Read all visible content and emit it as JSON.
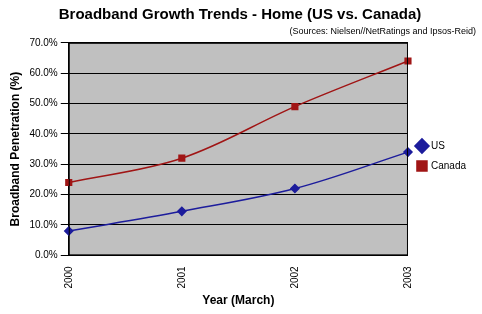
{
  "chart_data": {
    "type": "line",
    "title": "Broadband Growth Trends - Home (US vs. Canada)",
    "subtitle": "(Sources: Nielsen//NetRatings and Ipsos-Reid)",
    "x_label": "Year (March)",
    "y_label": "Broadband Penetration (%)",
    "categories": [
      "2000",
      "2001",
      "2002",
      "2003"
    ],
    "series": [
      {
        "name": "US",
        "color": "#1c1c9c",
        "marker": "diamond",
        "values": [
          8,
          14.5,
          22,
          34
        ]
      },
      {
        "name": "Canada",
        "color": "#a01515",
        "marker": "square",
        "values": [
          24,
          32,
          49,
          64
        ]
      }
    ],
    "ylim": [
      0,
      70
    ],
    "yticks": [
      {
        "value": 0,
        "label": "0.0%"
      },
      {
        "value": 10,
        "label": "10.0%"
      },
      {
        "value": 20,
        "label": "20.0%"
      },
      {
        "value": 30,
        "label": "30.0%"
      },
      {
        "value": 40,
        "label": "40.0%"
      },
      {
        "value": 50,
        "label": "50.0%"
      },
      {
        "value": 60,
        "label": "60.0%"
      },
      {
        "value": 70,
        "label": "70.0%"
      }
    ],
    "grid": true,
    "legend": "right"
  }
}
